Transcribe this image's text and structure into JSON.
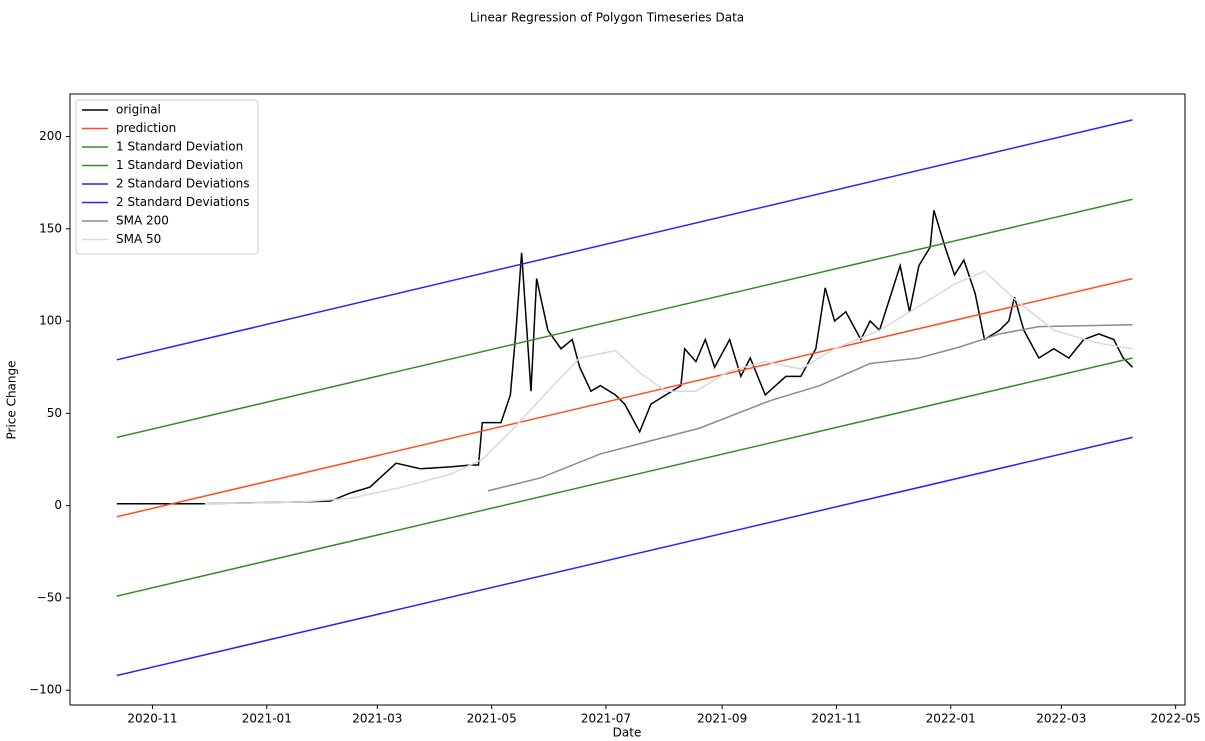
{
  "chart_data": {
    "type": "line",
    "title": "Linear Regression of Polygon Timeseries Data",
    "x_label": "Date",
    "y_label": "Price Change",
    "xlim": [
      18523,
      19118
    ],
    "ylim": [
      -108,
      223
    ],
    "xticks": [
      {
        "value": 18567,
        "label": "2020-11"
      },
      {
        "value": 18628,
        "label": "2021-01"
      },
      {
        "value": 18687,
        "label": "2021-03"
      },
      {
        "value": 18748,
        "label": "2021-05"
      },
      {
        "value": 18809,
        "label": "2021-07"
      },
      {
        "value": 18871,
        "label": "2021-09"
      },
      {
        "value": 18932,
        "label": "2021-11"
      },
      {
        "value": 18993,
        "label": "2022-01"
      },
      {
        "value": 19052,
        "label": "2022-03"
      },
      {
        "value": 19113,
        "label": "2022-05"
      }
    ],
    "yticks": [
      {
        "value": -100,
        "label": "−100"
      },
      {
        "value": -50,
        "label": "−50"
      },
      0,
      50,
      100,
      150,
      200
    ],
    "grid": false,
    "legend": "upper left",
    "series": [
      {
        "name": "original",
        "color": "#000000",
        "x": [
          18548,
          18566,
          18593,
          18619,
          18646,
          18662,
          18673,
          18683,
          18697,
          18710,
          18726,
          18737,
          18741,
          18743,
          18753,
          18758,
          18761,
          18764,
          18769,
          18772,
          18778,
          18785,
          18791,
          18795,
          18801,
          18806,
          18814,
          18819,
          18827,
          18833,
          18841,
          18849,
          18851,
          18857,
          18862,
          18867,
          18875,
          18881,
          18886,
          18894,
          18905,
          18913,
          18921,
          18926,
          18931,
          18937,
          18945,
          18950,
          18955,
          18966,
          18971,
          18976,
          18982,
          18984,
          18990,
          18995,
          19000,
          19006,
          19011,
          19019,
          19024,
          19027,
          19032,
          19040,
          19048,
          19056,
          19064,
          19072,
          19080,
          19085,
          19090
        ],
        "values": [
          1,
          1,
          1,
          1.5,
          2,
          2.5,
          7,
          10,
          23,
          20,
          21,
          22,
          22,
          45,
          45,
          60,
          95,
          137,
          62,
          123,
          95,
          85,
          90,
          75,
          62,
          65,
          60,
          55,
          40,
          55,
          60,
          65,
          85,
          78,
          90,
          75,
          90,
          70,
          80,
          60,
          70,
          70,
          85,
          118,
          100,
          105,
          90,
          100,
          95,
          130,
          105,
          130,
          140,
          160,
          140,
          125,
          133,
          115,
          90,
          95,
          100,
          113,
          95,
          80,
          85,
          80,
          90,
          93,
          90,
          80,
          75
        ]
      },
      {
        "name": "prediction",
        "color": "#ff4f23",
        "x": [
          18548,
          19090
        ],
        "values": [
          -6,
          123
        ]
      },
      {
        "name": "1 Standard Deviation",
        "color": "#3a8a2a",
        "x": [
          18548,
          19090
        ],
        "values": [
          37,
          166
        ]
      },
      {
        "name": "1 Standard Deviation",
        "color": "#3a8a2a",
        "x": [
          18548,
          19090
        ],
        "values": [
          -49,
          80
        ]
      },
      {
        "name": "2 Standard Deviations",
        "color": "#2424ff",
        "x": [
          18548,
          19090
        ],
        "values": [
          79,
          209
        ]
      },
      {
        "name": "2 Standard Deviations",
        "color": "#2424ff",
        "x": [
          18548,
          19090
        ],
        "values": [
          -92,
          37
        ]
      },
      {
        "name": "SMA 200",
        "color": "#8c8c8c",
        "x": [
          18746,
          18774,
          18806,
          18859,
          18897,
          18923,
          18950,
          18976,
          18998,
          19019,
          19040,
          19090
        ],
        "values": [
          8,
          15,
          28,
          42,
          57,
          65,
          77,
          80,
          86,
          93,
          97,
          98
        ]
      },
      {
        "name": "SMA 50",
        "color": "#d9d9d9",
        "x": [
          18595,
          18646,
          18673,
          18700,
          18726,
          18743,
          18758,
          18778,
          18795,
          18814,
          18827,
          18841,
          18857,
          18875,
          18894,
          18913,
          18931,
          18955,
          18976,
          18995,
          19011,
          19027,
          19048,
          19072,
          19090
        ],
        "values": [
          1,
          2,
          4,
          10,
          17,
          25,
          40,
          62,
          80,
          84,
          72,
          62,
          62,
          73,
          78,
          74,
          85,
          95,
          108,
          120,
          127,
          112,
          95,
          88,
          85
        ]
      }
    ]
  }
}
